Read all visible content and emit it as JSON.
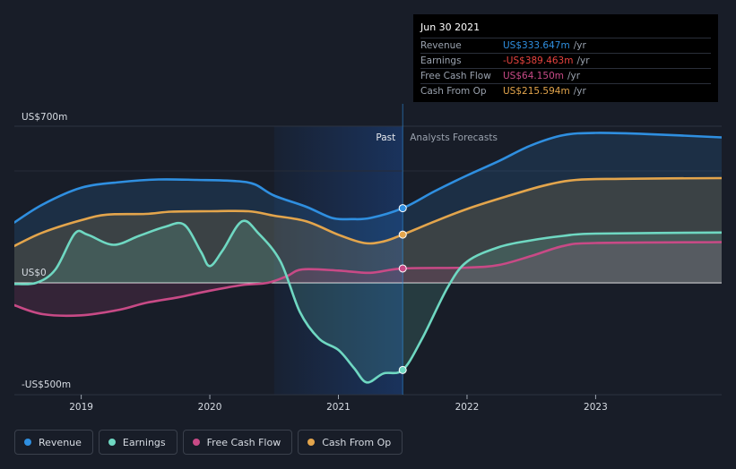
{
  "tooltip": {
    "date": "Jun 30 2021",
    "rows": [
      {
        "label": "Revenue",
        "value": "US$333.647m",
        "unit": "/yr",
        "color": "#2f8fe0"
      },
      {
        "label": "Earnings",
        "value": "-US$389.463m",
        "unit": "/yr",
        "color": "#e8433f"
      },
      {
        "label": "Free Cash Flow",
        "value": "US$64.150m",
        "unit": "/yr",
        "color": "#c84a86"
      },
      {
        "label": "Cash From Op",
        "value": "US$215.594m",
        "unit": "/yr",
        "color": "#e3a54c"
      }
    ]
  },
  "legend": [
    {
      "label": "Revenue",
      "color": "#2f8fe0"
    },
    {
      "label": "Earnings",
      "color": "#6fd8c2"
    },
    {
      "label": "Free Cash Flow",
      "color": "#c84a86"
    },
    {
      "label": "Cash From Op",
      "color": "#e3a54c"
    }
  ],
  "chart_data": {
    "type": "line",
    "y_axis": {
      "top_label": "US$700m",
      "zero_label": "US$0",
      "bottom_label": "-US$500m",
      "ylim": [
        -500,
        700
      ]
    },
    "xlim": [
      2018.48,
      2023.98
    ],
    "x_ticks": [
      {
        "value": 2019.0,
        "label": "2019"
      },
      {
        "value": 2020.0,
        "label": "2020"
      },
      {
        "value": 2021.0,
        "label": "2021"
      },
      {
        "value": 2022.0,
        "label": "2022"
      },
      {
        "value": 2023.0,
        "label": "2023"
      }
    ],
    "divider": {
      "x": 2021.5,
      "past_label": "Past",
      "forecast_label": "Analysts Forecasts",
      "past_shade_start": 2020.5
    },
    "highlight_x": 2021.5,
    "series": [
      {
        "name": "Revenue",
        "color": "#2f8fe0",
        "fill": true,
        "points": [
          [
            2018.48,
            270
          ],
          [
            2018.7,
            350
          ],
          [
            2019.0,
            425
          ],
          [
            2019.3,
            450
          ],
          [
            2019.6,
            462
          ],
          [
            2019.9,
            460
          ],
          [
            2020.2,
            455
          ],
          [
            2020.35,
            440
          ],
          [
            2020.5,
            390
          ],
          [
            2020.75,
            340
          ],
          [
            2020.95,
            290
          ],
          [
            2021.1,
            285
          ],
          [
            2021.25,
            290
          ],
          [
            2021.5,
            333.6
          ],
          [
            2021.75,
            410
          ],
          [
            2022.0,
            480
          ],
          [
            2022.25,
            545
          ],
          [
            2022.5,
            615
          ],
          [
            2022.75,
            660
          ],
          [
            2023.0,
            670
          ],
          [
            2023.4,
            665
          ],
          [
            2023.98,
            650
          ]
        ]
      },
      {
        "name": "Cash From Op",
        "color": "#e3a54c",
        "fill": true,
        "points": [
          [
            2018.48,
            165
          ],
          [
            2018.7,
            225
          ],
          [
            2019.0,
            280
          ],
          [
            2019.2,
            305
          ],
          [
            2019.5,
            308
          ],
          [
            2019.7,
            318
          ],
          [
            2020.0,
            320
          ],
          [
            2020.3,
            320
          ],
          [
            2020.5,
            300
          ],
          [
            2020.75,
            275
          ],
          [
            2021.0,
            215
          ],
          [
            2021.2,
            178
          ],
          [
            2021.35,
            185
          ],
          [
            2021.5,
            215.6
          ],
          [
            2021.75,
            275
          ],
          [
            2022.0,
            330
          ],
          [
            2022.3,
            385
          ],
          [
            2022.6,
            435
          ],
          [
            2022.85,
            460
          ],
          [
            2023.2,
            465
          ],
          [
            2023.98,
            468
          ]
        ]
      },
      {
        "name": "Free Cash Flow",
        "color": "#c84a86",
        "fill": true,
        "points": [
          [
            2018.48,
            -100
          ],
          [
            2018.7,
            -140
          ],
          [
            2019.0,
            -145
          ],
          [
            2019.3,
            -120
          ],
          [
            2019.5,
            -90
          ],
          [
            2019.75,
            -65
          ],
          [
            2020.0,
            -35
          ],
          [
            2020.25,
            -10
          ],
          [
            2020.45,
            0
          ],
          [
            2020.6,
            30
          ],
          [
            2020.72,
            60
          ],
          [
            2021.0,
            55
          ],
          [
            2021.25,
            45
          ],
          [
            2021.5,
            64.2
          ],
          [
            2022.0,
            68
          ],
          [
            2022.25,
            80
          ],
          [
            2022.5,
            120
          ],
          [
            2022.75,
            165
          ],
          [
            2023.0,
            178
          ],
          [
            2023.98,
            182
          ]
        ]
      },
      {
        "name": "Earnings",
        "color": "#6fd8c2",
        "fill": true,
        "points": [
          [
            2018.48,
            -5
          ],
          [
            2018.65,
            0
          ],
          [
            2018.8,
            60
          ],
          [
            2018.95,
            220
          ],
          [
            2019.05,
            215
          ],
          [
            2019.25,
            170
          ],
          [
            2019.45,
            210
          ],
          [
            2019.65,
            250
          ],
          [
            2019.8,
            260
          ],
          [
            2019.93,
            140
          ],
          [
            2020.0,
            75
          ],
          [
            2020.1,
            145
          ],
          [
            2020.25,
            275
          ],
          [
            2020.38,
            220
          ],
          [
            2020.55,
            95
          ],
          [
            2020.7,
            -130
          ],
          [
            2020.85,
            -250
          ],
          [
            2021.0,
            -300
          ],
          [
            2021.12,
            -380
          ],
          [
            2021.22,
            -445
          ],
          [
            2021.35,
            -405
          ],
          [
            2021.5,
            -389.5
          ],
          [
            2021.65,
            -250
          ],
          [
            2021.85,
            -20
          ],
          [
            2022.0,
            95
          ],
          [
            2022.25,
            160
          ],
          [
            2022.5,
            190
          ],
          [
            2022.75,
            210
          ],
          [
            2023.0,
            220
          ],
          [
            2023.98,
            225
          ]
        ]
      }
    ]
  }
}
